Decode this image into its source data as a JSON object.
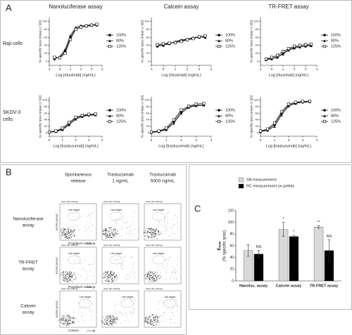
{
  "panel_letters": [
    "A",
    "B",
    "C"
  ],
  "panel_a": {
    "columns": [
      "Nanoluciferase assay",
      "Calcein assay",
      "TR-FRET assay"
    ],
    "rows": [
      [
        "Raji cells"
      ],
      [
        "SKOV-3",
        "cells"
      ]
    ]
  },
  "panel_b": {
    "columns": [
      [
        "Spontaneous",
        "release"
      ],
      [
        "Trastuzumab",
        "1 ng/mL"
      ],
      [
        "Trastuzumab",
        "5000 ng/mL"
      ]
    ],
    "rows": [
      [
        "Nanoluciferase",
        "assay"
      ],
      [
        "TR-FRET",
        "assay"
      ],
      [
        "Calcein",
        "assay"
      ]
    ],
    "y_labels": [
      "EGFR-AF647",
      "EGFR-AF647",
      "EGFR-AF647"
    ],
    "x_labels": [
      "Propidium iodide",
      "Propidium iodide",
      "Calcein"
    ],
    "plot_header": "Gate: [No Gating]",
    "gate_label": "Live target"
  },
  "chart_data": [
    {
      "type": "line",
      "x": [
        -0.5,
        0,
        0.5,
        1,
        1.5,
        2,
        2.5,
        3,
        3.5
      ],
      "xlim": [
        -1,
        4
      ],
      "xticks": [
        -1,
        0,
        1,
        2,
        3,
        4
      ],
      "ylim": [
        -10,
        110
      ],
      "yticks": [
        0,
        20,
        40,
        60,
        80,
        100
      ],
      "xlabel": "Log [rituximab] (ng/mL)",
      "ylabel": "% specific lysis (mean ± SD)",
      "legend": "right",
      "series": [
        {
          "name": "100%",
          "color": "#000000",
          "marker": "circle",
          "values": [
            8,
            10,
            25,
            60,
            82,
            88,
            90,
            92,
            92
          ]
        },
        {
          "name": "80%",
          "color": "#000000",
          "marker": "triangle",
          "values": [
            6,
            12,
            30,
            65,
            85,
            90,
            88,
            90,
            91
          ]
        },
        {
          "name": "125%",
          "color": "#000000",
          "marker": "square-open",
          "values": [
            10,
            9,
            20,
            55,
            80,
            86,
            89,
            91,
            93
          ]
        }
      ]
    },
    {
      "type": "line",
      "x": [
        -0.5,
        0,
        0.5,
        1,
        1.5,
        2,
        2.5,
        3,
        3.5
      ],
      "xlim": [
        -1,
        4
      ],
      "xticks": [
        -1,
        0,
        1,
        2,
        3,
        4
      ],
      "ylim": [
        -10,
        110
      ],
      "yticks": [
        0,
        20,
        40,
        60,
        80,
        100
      ],
      "xlabel": "Log [rituximab] (ng/mL)",
      "ylabel": "% specific lysis (mean ± SD)",
      "legend": "right",
      "series": [
        {
          "name": "100%",
          "color": "#000000",
          "marker": "circle",
          "values": [
            40,
            42,
            45,
            48,
            52,
            55,
            58,
            60,
            62
          ]
        },
        {
          "name": "80%",
          "color": "#000000",
          "marker": "triangle",
          "values": [
            38,
            40,
            44,
            50,
            54,
            56,
            60,
            61,
            60
          ]
        },
        {
          "name": "125%",
          "color": "#000000",
          "marker": "square-open",
          "values": [
            42,
            44,
            46,
            47,
            50,
            54,
            57,
            62,
            64
          ]
        }
      ]
    },
    {
      "type": "line",
      "x": [
        -0.5,
        0,
        0.5,
        1,
        1.5,
        2,
        2.5,
        3,
        3.5
      ],
      "xlim": [
        -1,
        4
      ],
      "xticks": [
        -1,
        0,
        1,
        2,
        3,
        4
      ],
      "ylim": [
        -10,
        110
      ],
      "yticks": [
        0,
        20,
        40,
        60,
        80,
        100
      ],
      "xlabel": "Log [rituximab] (ng/mL)",
      "ylabel": "% specific lysis (mean ± SD)",
      "legend": "right",
      "series": [
        {
          "name": "100%",
          "color": "#000000",
          "marker": "circle",
          "values": [
            5,
            8,
            12,
            20,
            30,
            35,
            38,
            40,
            40
          ]
        },
        {
          "name": "80%",
          "color": "#000000",
          "marker": "triangle",
          "values": [
            4,
            6,
            10,
            18,
            28,
            33,
            36,
            38,
            39
          ]
        },
        {
          "name": "125%",
          "color": "#000000",
          "marker": "square-open",
          "values": [
            6,
            10,
            15,
            25,
            32,
            38,
            40,
            42,
            43
          ]
        }
      ]
    },
    {
      "type": "line",
      "x": [
        0,
        0.5,
        1,
        1.5,
        2,
        2.5,
        3,
        3.5
      ],
      "xlim": [
        0,
        4
      ],
      "xticks": [
        0,
        1,
        2,
        3,
        4
      ],
      "ylim": [
        -10,
        110
      ],
      "yticks": [
        0,
        20,
        40,
        60,
        80,
        100
      ],
      "xlabel": "Log [trastuzumab] (ng/mL)",
      "ylabel": "% specific lysis (mean ± SD)",
      "legend": "right",
      "series": [
        {
          "name": "100%",
          "color": "#000000",
          "marker": "circle",
          "values": [
            3,
            5,
            12,
            28,
            45,
            52,
            55,
            56
          ]
        },
        {
          "name": "80%",
          "color": "#000000",
          "marker": "triangle",
          "values": [
            2,
            4,
            10,
            25,
            42,
            50,
            54,
            55
          ]
        },
        {
          "name": "125%",
          "color": "#000000",
          "marker": "square-open",
          "values": [
            3,
            6,
            15,
            32,
            48,
            54,
            57,
            58
          ]
        }
      ]
    },
    {
      "type": "line",
      "x": [
        0,
        0.5,
        1,
        1.5,
        2,
        2.5,
        3,
        3.5
      ],
      "xlim": [
        0,
        4
      ],
      "xticks": [
        0,
        1,
        2,
        3,
        4
      ],
      "ylim": [
        -10,
        110
      ],
      "yticks": [
        0,
        20,
        40,
        60,
        80,
        100
      ],
      "xlabel": "Log [trastuzumab] (ng/mL)",
      "ylabel": "% specific lysis (mean ± SD)",
      "legend": "right",
      "series": [
        {
          "name": "100%",
          "color": "#000000",
          "marker": "circle",
          "values": [
            2,
            5,
            12,
            35,
            65,
            80,
            85,
            86
          ]
        },
        {
          "name": "80%",
          "color": "#000000",
          "marker": "triangle",
          "values": [
            1,
            4,
            10,
            30,
            60,
            78,
            83,
            85
          ]
        },
        {
          "name": "125%",
          "color": "#000000",
          "marker": "square-open",
          "values": [
            3,
            6,
            15,
            40,
            70,
            82,
            88,
            90
          ]
        }
      ]
    },
    {
      "type": "line",
      "x": [
        0,
        0.5,
        1,
        1.5,
        2,
        2.5,
        3,
        3.5
      ],
      "xlim": [
        0,
        4
      ],
      "xticks": [
        0,
        1,
        2,
        3,
        4
      ],
      "ylim": [
        -10,
        110
      ],
      "yticks": [
        0,
        20,
        40,
        60,
        80,
        100
      ],
      "xlabel": "Log [trastuzumab] (ng/mL)",
      "ylabel": "% specific lysis (mean ± SD)",
      "legend": "right",
      "series": [
        {
          "name": "100%",
          "color": "#000000",
          "marker": "circle",
          "values": [
            5,
            10,
            25,
            60,
            85,
            92,
            95,
            96
          ]
        },
        {
          "name": "80%",
          "color": "#000000",
          "marker": "triangle",
          "values": [
            4,
            8,
            20,
            55,
            82,
            90,
            94,
            95
          ]
        },
        {
          "name": "125%",
          "color": "#000000",
          "marker": "square-open",
          "values": [
            6,
            12,
            30,
            65,
            88,
            94,
            96,
            97
          ]
        }
      ]
    },
    {
      "type": "bar",
      "categories": [
        "Nanoluc. assay",
        "Calcein assay",
        "TR-FRET assay"
      ],
      "ylim": [
        0,
        120
      ],
      "yticks": [
        0,
        20,
        40,
        60,
        80,
        100,
        120
      ],
      "ylabel_main": "E",
      "ylabel_sub": "max",
      "ylabel": "(% specific lysis)",
      "legend": "top",
      "series": [
        {
          "name": "SN measurement",
          "color": "#d9d9d9",
          "values": [
            52,
            88,
            92
          ],
          "errors": [
            10,
            12,
            2
          ],
          "annotations": [
            null,
            "*",
            "**"
          ]
        },
        {
          "name": "RC measurement on pellets",
          "color": "#000000",
          "values": [
            46,
            76,
            52
          ],
          "errors": [
            6,
            2,
            18
          ],
          "annotations": [
            "NS",
            "*",
            "NS"
          ]
        }
      ]
    }
  ]
}
